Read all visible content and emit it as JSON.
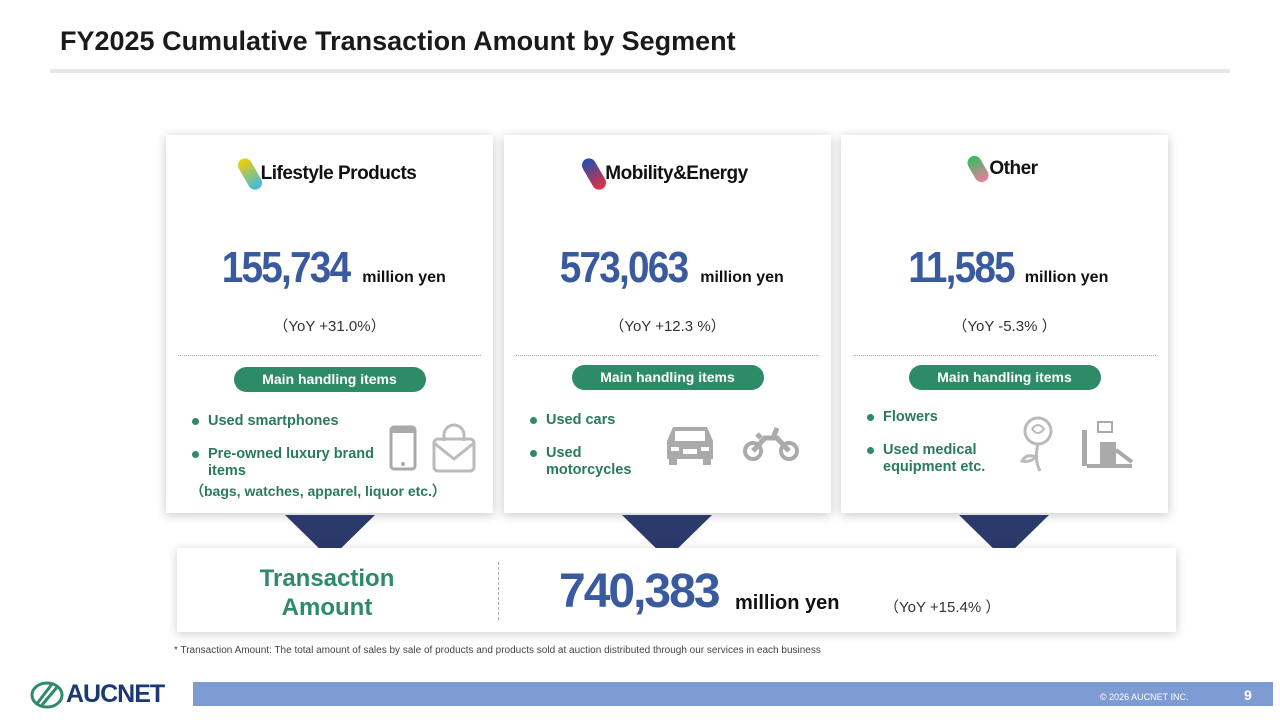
{
  "title": "FY2025 Cumulative Transaction Amount by Segment",
  "colors": {
    "accent_blue": "#3a5aa0",
    "accent_green": "#2e8b67",
    "footer_bar": "#7f9bd4"
  },
  "segments": [
    {
      "name": "Lifestyle Products",
      "amount": "155,734",
      "unit": "million yen",
      "yoy": "（YoY +31.0%）",
      "pill": "Main handling items",
      "items": [
        "Used smartphones",
        "Pre-owned luxury brand items",
        "（bags, watches, apparel, liquor etc.）"
      ],
      "icons": [
        "smartphone-icon",
        "handbag-icon"
      ]
    },
    {
      "name": "Mobility&Energy",
      "amount": "573,063",
      "unit": "million yen",
      "yoy": "（YoY +12.3 %）",
      "pill": "Main handling items",
      "items": [
        "Used cars",
        "Used motorcycles"
      ],
      "icons": [
        "car-icon",
        "motorcycle-icon"
      ]
    },
    {
      "name": "Other",
      "amount": "11,585",
      "unit": "million yen",
      "yoy": "（YoY -5.3% ）",
      "pill": "Main handling items",
      "items": [
        "Flowers",
        "Used medical equipment etc."
      ],
      "icons": [
        "rose-icon",
        "medical-equipment-icon"
      ]
    }
  ],
  "summary": {
    "label": "Transaction Amount",
    "amount": "740,383",
    "unit": "million yen",
    "yoy": "（YoY +15.4% ）"
  },
  "note": "* Transaction Amount: The total amount of sales by sale of products and products sold at auction distributed through our services in each business",
  "footer": {
    "logo": "AUCNET",
    "copyright": "© 2026 AUCNET INC.",
    "page": "9"
  }
}
